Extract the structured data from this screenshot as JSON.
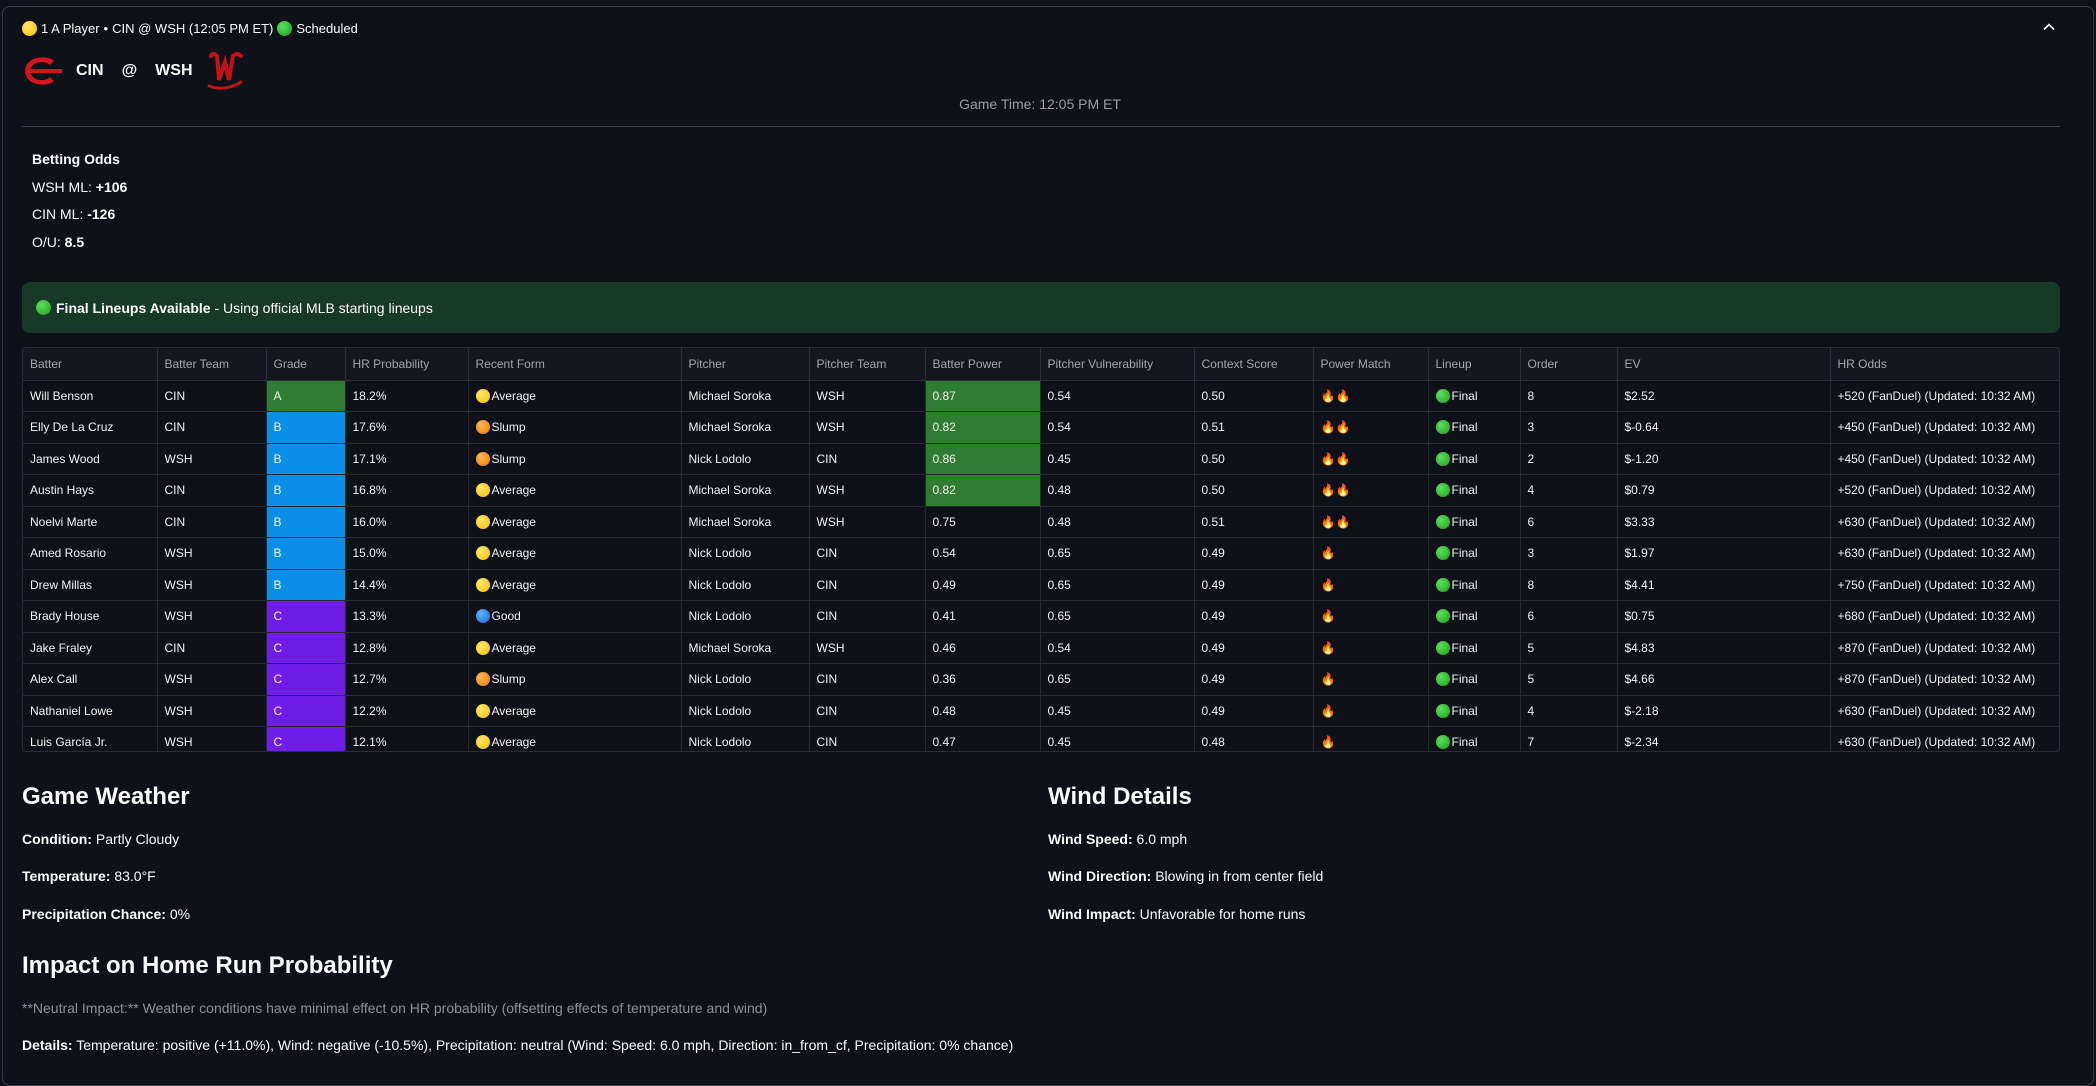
{
  "header": {
    "player_count": "1 A Player",
    "sep": "•",
    "matchup": "CIN @ WSH (12:05 PM ET)",
    "status": "Scheduled"
  },
  "teams": {
    "away": "CIN",
    "at": "@",
    "home": "WSH"
  },
  "game_time": "Game Time: 12:05 PM ET",
  "odds": {
    "title": "Betting Odds",
    "wsh_ml_label": "WSH ML:",
    "wsh_ml": "+106",
    "cin_ml_label": "CIN ML:",
    "cin_ml": "-126",
    "ou_label": "O/U:",
    "ou": "8.5"
  },
  "lineup_alert": {
    "bold": "Final Lineups Available",
    "text": " - Using official MLB starting lineups"
  },
  "table": {
    "columns": [
      "Batter",
      "Batter Team",
      "Grade",
      "HR Probability",
      "Recent Form",
      "Pitcher",
      "Pitcher Team",
      "Batter Power",
      "Pitcher Vulnerability",
      "Context Score",
      "Power Match",
      "Lineup",
      "Order",
      "EV",
      "HR Odds"
    ],
    "rows": [
      {
        "batter": "Will Benson",
        "team": "CIN",
        "grade": "A",
        "hr_prob": "18.2%",
        "form": "Average",
        "form_color": "yellow",
        "pitcher": "Michael Soroka",
        "pitcher_team": "WSH",
        "power": "0.87",
        "power_hi": true,
        "vuln": "0.54",
        "context": "0.50",
        "match": "🔥🔥",
        "lineup": "Final",
        "order": "8",
        "ev": "$2.52",
        "odds": "+520 (FanDuel) (Updated: 10:32 AM)"
      },
      {
        "batter": "Elly De La Cruz",
        "team": "CIN",
        "grade": "B",
        "hr_prob": "17.6%",
        "form": "Slump",
        "form_color": "orange",
        "pitcher": "Michael Soroka",
        "pitcher_team": "WSH",
        "power": "0.82",
        "power_hi": true,
        "vuln": "0.54",
        "context": "0.51",
        "match": "🔥🔥",
        "lineup": "Final",
        "order": "3",
        "ev": "$-0.64",
        "odds": "+450 (FanDuel) (Updated: 10:32 AM)"
      },
      {
        "batter": "James Wood",
        "team": "WSH",
        "grade": "B",
        "hr_prob": "17.1%",
        "form": "Slump",
        "form_color": "orange",
        "pitcher": "Nick Lodolo",
        "pitcher_team": "CIN",
        "power": "0.86",
        "power_hi": true,
        "vuln": "0.45",
        "context": "0.50",
        "match": "🔥🔥",
        "lineup": "Final",
        "order": "2",
        "ev": "$-1.20",
        "odds": "+450 (FanDuel) (Updated: 10:32 AM)"
      },
      {
        "batter": "Austin Hays",
        "team": "CIN",
        "grade": "B",
        "hr_prob": "16.8%",
        "form": "Average",
        "form_color": "yellow",
        "pitcher": "Michael Soroka",
        "pitcher_team": "WSH",
        "power": "0.82",
        "power_hi": true,
        "vuln": "0.48",
        "context": "0.50",
        "match": "🔥🔥",
        "lineup": "Final",
        "order": "4",
        "ev": "$0.79",
        "odds": "+520 (FanDuel) (Updated: 10:32 AM)"
      },
      {
        "batter": "Noelvi Marte",
        "team": "CIN",
        "grade": "B",
        "hr_prob": "16.0%",
        "form": "Average",
        "form_color": "yellow",
        "pitcher": "Michael Soroka",
        "pitcher_team": "WSH",
        "power": "0.75",
        "power_hi": false,
        "vuln": "0.48",
        "context": "0.51",
        "match": "🔥🔥",
        "lineup": "Final",
        "order": "6",
        "ev": "$3.33",
        "odds": "+630 (FanDuel) (Updated: 10:32 AM)"
      },
      {
        "batter": "Amed Rosario",
        "team": "WSH",
        "grade": "B",
        "hr_prob": "15.0%",
        "form": "Average",
        "form_color": "yellow",
        "pitcher": "Nick Lodolo",
        "pitcher_team": "CIN",
        "power": "0.54",
        "power_hi": false,
        "vuln": "0.65",
        "context": "0.49",
        "match": "🔥",
        "lineup": "Final",
        "order": "3",
        "ev": "$1.97",
        "odds": "+630 (FanDuel) (Updated: 10:32 AM)"
      },
      {
        "batter": "Drew Millas",
        "team": "WSH",
        "grade": "B",
        "hr_prob": "14.4%",
        "form": "Average",
        "form_color": "yellow",
        "pitcher": "Nick Lodolo",
        "pitcher_team": "CIN",
        "power": "0.49",
        "power_hi": false,
        "vuln": "0.65",
        "context": "0.49",
        "match": "🔥",
        "lineup": "Final",
        "order": "8",
        "ev": "$4.41",
        "odds": "+750 (FanDuel) (Updated: 10:32 AM)"
      },
      {
        "batter": "Brady House",
        "team": "WSH",
        "grade": "C",
        "hr_prob": "13.3%",
        "form": "Good",
        "form_color": "blue",
        "pitcher": "Nick Lodolo",
        "pitcher_team": "CIN",
        "power": "0.41",
        "power_hi": false,
        "vuln": "0.65",
        "context": "0.49",
        "match": "🔥",
        "lineup": "Final",
        "order": "6",
        "ev": "$0.75",
        "odds": "+680 (FanDuel) (Updated: 10:32 AM)"
      },
      {
        "batter": "Jake Fraley",
        "team": "CIN",
        "grade": "C",
        "hr_prob": "12.8%",
        "form": "Average",
        "form_color": "yellow",
        "pitcher": "Michael Soroka",
        "pitcher_team": "WSH",
        "power": "0.46",
        "power_hi": false,
        "vuln": "0.54",
        "context": "0.49",
        "match": "🔥",
        "lineup": "Final",
        "order": "5",
        "ev": "$4.83",
        "odds": "+870 (FanDuel) (Updated: 10:32 AM)"
      },
      {
        "batter": "Alex Call",
        "team": "WSH",
        "grade": "C",
        "hr_prob": "12.7%",
        "form": "Slump",
        "form_color": "orange",
        "pitcher": "Nick Lodolo",
        "pitcher_team": "CIN",
        "power": "0.36",
        "power_hi": false,
        "vuln": "0.65",
        "context": "0.49",
        "match": "🔥",
        "lineup": "Final",
        "order": "5",
        "ev": "$4.66",
        "odds": "+870 (FanDuel) (Updated: 10:32 AM)"
      },
      {
        "batter": "Nathaniel Lowe",
        "team": "WSH",
        "grade": "C",
        "hr_prob": "12.2%",
        "form": "Average",
        "form_color": "yellow",
        "pitcher": "Nick Lodolo",
        "pitcher_team": "CIN",
        "power": "0.48",
        "power_hi": false,
        "vuln": "0.45",
        "context": "0.49",
        "match": "🔥",
        "lineup": "Final",
        "order": "4",
        "ev": "$-2.18",
        "odds": "+630 (FanDuel) (Updated: 10:32 AM)"
      },
      {
        "batter": "Luis García Jr.",
        "team": "WSH",
        "grade": "C",
        "hr_prob": "12.1%",
        "form": "Average",
        "form_color": "yellow",
        "pitcher": "Nick Lodolo",
        "pitcher_team": "CIN",
        "power": "0.47",
        "power_hi": false,
        "vuln": "0.45",
        "context": "0.48",
        "match": "🔥",
        "lineup": "Final",
        "order": "7",
        "ev": "$-2.34",
        "odds": "+630 (FanDuel) (Updated: 10:32 AM)"
      }
    ]
  },
  "weather": {
    "title": "Game Weather",
    "condition_label": "Condition:",
    "condition": "Partly Cloudy",
    "temp_label": "Temperature:",
    "temp": "83.0°F",
    "precip_label": "Precipitation Chance:",
    "precip": "0%"
  },
  "wind": {
    "title": "Wind Details",
    "speed_label": "Wind Speed:",
    "speed": "6.0 mph",
    "direction_label": "Wind Direction:",
    "direction": "Blowing in from center field",
    "impact_label": "Wind Impact:",
    "impact": "Unfavorable for home runs"
  },
  "impact": {
    "title": "Impact on Home Run Probability",
    "note": "**Neutral Impact:** Weather conditions have minimal effect on HR probability (offsetting effects of temperature and wind)",
    "details_label": "Details:",
    "details": "Temperature: positive (+11.0%), Wind: negative (-10.5%), Precipitation: neutral (Wind: Speed: 6.0 mph, Direction: in_from_cf, Precipitation: 0% chance)"
  }
}
